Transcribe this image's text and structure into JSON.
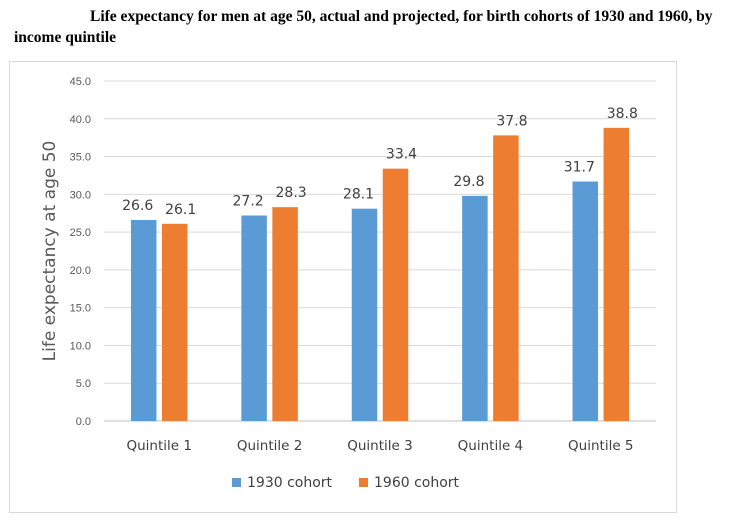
{
  "title": "Life expectancy for men at age 50, actual and projected, for birth cohorts of 1930 and 1960, by income quintile",
  "chart_data": {
    "type": "bar",
    "title": "Life expectancy for men at age 50, actual and projected, for birth cohorts of 1930 and 1960, by income quintile",
    "xlabel": "",
    "ylabel": "Life expectancy at age 50",
    "categories": [
      "Quintile 1",
      "Quintile 2",
      "Quintile 3",
      "Quintile 4",
      "Quintile 5"
    ],
    "series": [
      {
        "name": "1930 cohort",
        "color": "#5b9bd5",
        "values": [
          26.6,
          27.2,
          28.1,
          29.8,
          31.7
        ]
      },
      {
        "name": "1960 cohort",
        "color": "#ed7d31",
        "values": [
          26.1,
          28.3,
          33.4,
          37.8,
          38.8
        ]
      }
    ],
    "ylim": [
      0,
      45
    ],
    "yticks": [
      0.0,
      5.0,
      10.0,
      15.0,
      20.0,
      25.0,
      30.0,
      35.0,
      40.0,
      45.0
    ],
    "grid": true,
    "legend": "bottom",
    "data_labels": true
  }
}
